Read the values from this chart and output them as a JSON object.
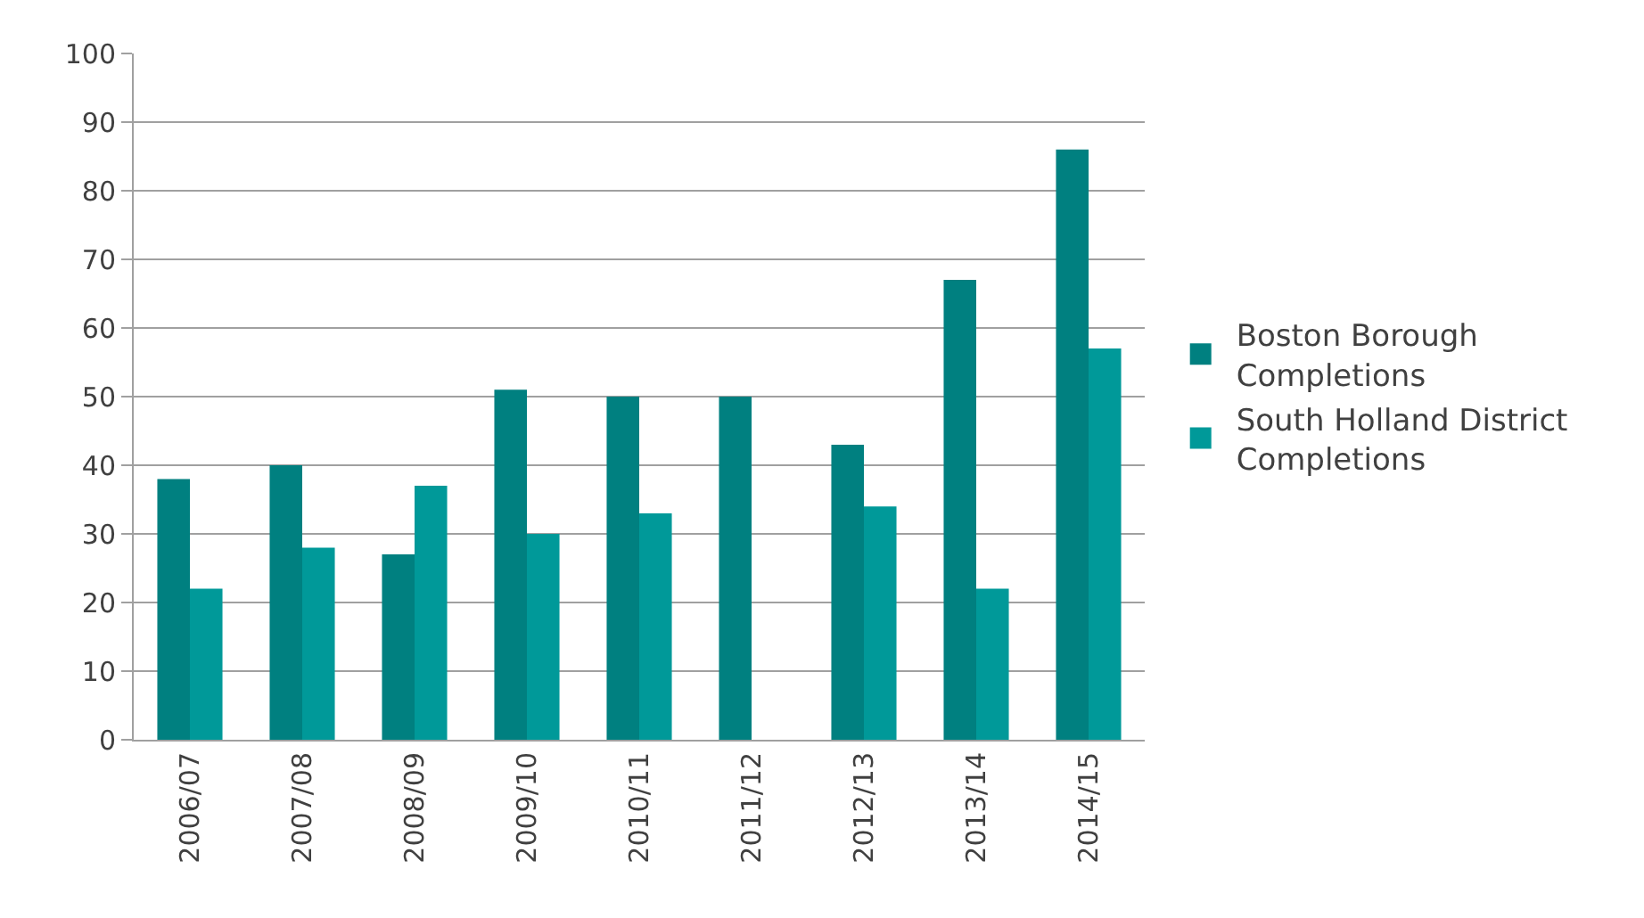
{
  "chart_data": {
    "type": "bar",
    "categories": [
      "2006/07",
      "2007/08",
      "2008/09",
      "2009/10",
      "2010/11",
      "2011/12",
      "2012/13",
      "2013/14",
      "2014/15"
    ],
    "series": [
      {
        "name": "Boston Borough Completions",
        "color": "#008080",
        "values": [
          38,
          40,
          27,
          51,
          50,
          50,
          43,
          67,
          86
        ]
      },
      {
        "name": "South Holland District Completions",
        "color": "#009999",
        "values": [
          22,
          28,
          37,
          30,
          33,
          null,
          34,
          22,
          57
        ]
      }
    ],
    "ylim": [
      0,
      100
    ],
    "yticks": [
      0,
      10,
      20,
      30,
      40,
      50,
      60,
      70,
      80,
      90,
      100
    ],
    "grid": "y",
    "legend": "right"
  }
}
